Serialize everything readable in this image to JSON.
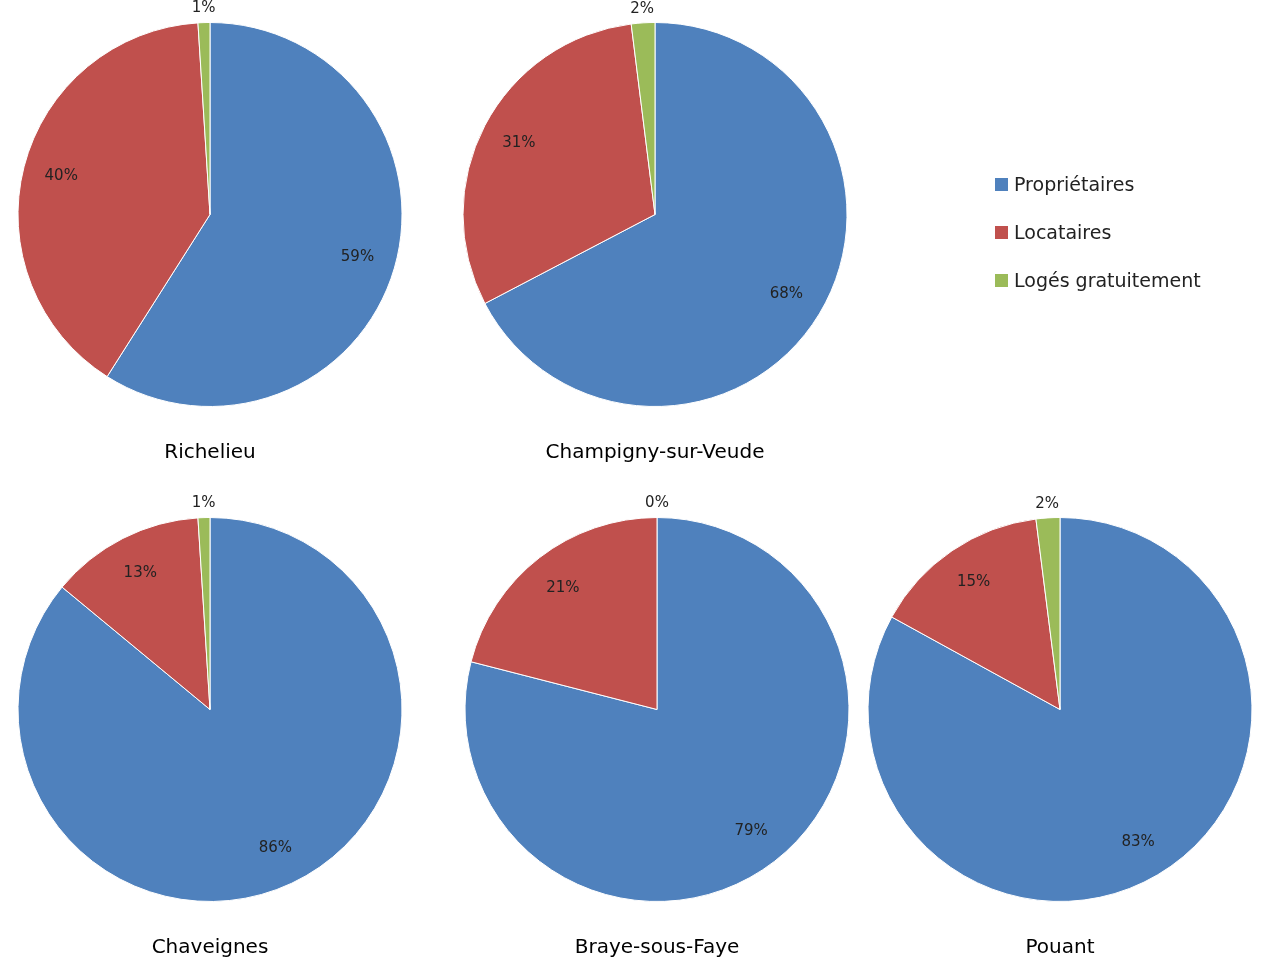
{
  "chart_data": [
    {
      "type": "pie",
      "title": "Richelieu",
      "categories": [
        null,
        null,
        null
      ],
      "values": [
        59,
        40,
        1
      ],
      "colors": [
        "#4f81bd",
        "#c0504d",
        "#9bbb59"
      ],
      "value_labels": [
        "59%",
        "40%",
        "1%"
      ]
    },
    {
      "type": "pie",
      "title": "Champigny-sur-Veude",
      "categories": [
        "Propriétaires",
        "Locataires",
        "Logés gratuitement"
      ],
      "values": [
        68,
        31,
        2
      ],
      "colors": [
        "#4f81bd",
        "#c0504d",
        "#9bbb59"
      ],
      "value_labels": [
        "68%",
        "31%",
        "2%"
      ],
      "legend": "right"
    },
    {
      "type": "pie",
      "title": "Chaveignes",
      "categories": [
        null,
        null,
        null
      ],
      "values": [
        86,
        13,
        1
      ],
      "colors": [
        "#4f81bd",
        "#c0504d",
        "#9bbb59"
      ],
      "value_labels": [
        "86%",
        "13%",
        "1%"
      ]
    },
    {
      "type": "pie",
      "title": "Braye-sous-Faye",
      "categories": [
        null,
        null,
        null
      ],
      "values": [
        79,
        21,
        0
      ],
      "colors": [
        "#4f81bd",
        "#c0504d",
        "#9bbb59"
      ],
      "value_labels": [
        "79%",
        "21%",
        "0%"
      ]
    },
    {
      "type": "pie",
      "title": "Pouant",
      "categories": [
        null,
        null,
        null
      ],
      "values": [
        83,
        15,
        2
      ],
      "colors": [
        "#4f81bd",
        "#c0504d",
        "#9bbb59"
      ],
      "value_labels": [
        "83%",
        "15%",
        "2%"
      ]
    }
  ]
}
